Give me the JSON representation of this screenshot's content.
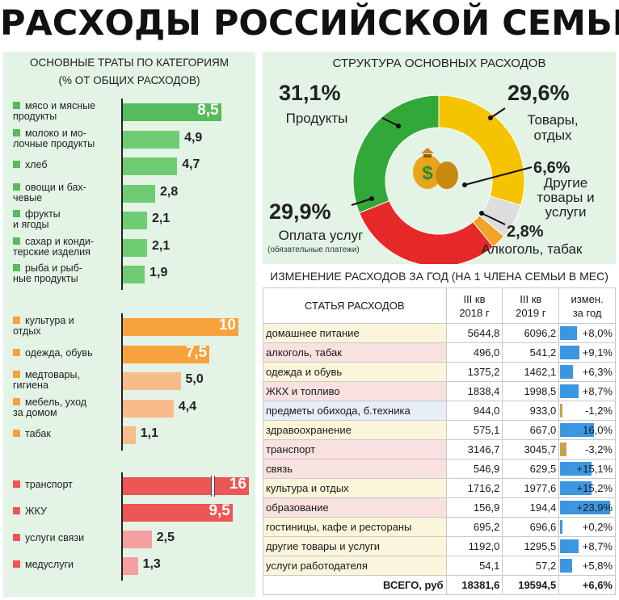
{
  "title": "РАСХОДЫ РОССИЙСКОЙ СЕМЬИ",
  "left_panel": {
    "heading_line1": "ОСНОВНЫЕ ТРАТЫ ПО КАТЕГОРИЯМ",
    "heading_line2": "(% ОТ ОБЩИХ РАСХОДОВ)"
  },
  "donut_title": "СТРУКТУРА ОСНОВНЫХ РАСХОДОВ",
  "donut_labels": {
    "products_pct": "31,1%",
    "products_name": "Продукты",
    "goods_pct": "29,6%",
    "goods_name_1": "Товары,",
    "goods_name_2": "отдых",
    "services_pct": "29,9%",
    "services_name": "Оплата услуг",
    "services_note": "(обязательные платежи)",
    "other_pct": "6,6%",
    "other_name_1": "Другие",
    "other_name_2": "товары и",
    "other_name_3": "услуги",
    "alcohol_pct": "2,8%",
    "alcohol_name": "Алкоголь, табак"
  },
  "table_title": "ИЗМЕНЕНИЕ РАСХОДОВ ЗА ГОД (НА 1 ЧЛЕНА СЕМЬИ В МЕС)",
  "table_headers": {
    "item": "СТАТЬЯ РАСХОДОВ",
    "q2018_1": "III кв",
    "q2018_2": "2018 г",
    "q2019_1": "III кв",
    "q2019_2": "2019 г",
    "chg_1": "измен.",
    "chg_2": "за год"
  },
  "colors": {
    "green": "#6fcc72",
    "green_first": "#56bb5c",
    "orange_strong": "#f7a23c",
    "orange_light": "#f8bb8a",
    "red_strong": "#ee5555",
    "red_light": "#f4a0a0",
    "donut_green": "#33a83a",
    "donut_yellow": "#f5c300",
    "donut_red": "#e62828",
    "donut_grey": "#dddddd",
    "donut_orange": "#f2a32a",
    "row_yellow": "#fbf5dc",
    "row_pink": "#f8e1e0",
    "row_blue": "#e6eef7",
    "chg_pos": "#3b97e2",
    "chg_neg": "#c8a24a"
  },
  "chart_data": [
    {
      "type": "bar",
      "title": "ОСНОВНЫЕ ТРАТЫ ПО КАТЕГОРИЯМ (% ОТ ОБЩИХ РАСХОДОВ)",
      "groups": [
        {
          "name": "Продукты",
          "categories": [
            "мясо и мясные продукты",
            "молоко и молочные продукты",
            "хлеб",
            "овощи и бахчевые",
            "фрукты и ягоды",
            "сахар и кондитерские изделия",
            "рыба и рыбные продукты"
          ],
          "display_labels": [
            [
              "мясо и мясные",
              "продукты"
            ],
            [
              "молоко и мо-",
              "лочные продукты"
            ],
            [
              "хлеб"
            ],
            [
              "овощи и бах-",
              "чевые"
            ],
            [
              "фрукты",
              "и ягоды"
            ],
            [
              "сахар и конди-",
              "терские изделия"
            ],
            [
              "рыба и рыб-",
              "ные продукты"
            ]
          ],
          "values": [
            8.5,
            4.9,
            4.7,
            2.8,
            2.1,
            2.1,
            1.9
          ],
          "value_labels": [
            "8,5",
            "4,9",
            "4,7",
            "2,8",
            "2,1",
            "2,1",
            "1,9"
          ]
        },
        {
          "name": "Товары, отдых",
          "categories": [
            "культура и отдых",
            "одежда, обувь",
            "медтовары, гигиена",
            "мебель, уход за домом",
            "табак"
          ],
          "display_labels": [
            [
              "культура и",
              "отдых"
            ],
            [
              "одежда, обувь"
            ],
            [
              "медтовары,",
              "гигиена"
            ],
            [
              "мебель, уход",
              "за домом"
            ],
            [
              "табак"
            ]
          ],
          "values": [
            10,
            7.5,
            5.0,
            4.4,
            1.1
          ],
          "value_labels": [
            "10",
            "7,5",
            "5,0",
            "4,4",
            "1,1"
          ]
        },
        {
          "name": "Услуги",
          "categories": [
            "транспорт",
            "ЖКУ",
            "услуги связи",
            "медуслуги"
          ],
          "display_labels": [
            [
              "транспорт"
            ],
            [
              "ЖКУ"
            ],
            [
              "услуги связи"
            ],
            [
              "медуслуги"
            ]
          ],
          "values": [
            16,
            9.5,
            2.5,
            1.3
          ],
          "value_labels": [
            "16",
            "9,5",
            "2,5",
            "1,3"
          ]
        }
      ]
    },
    {
      "type": "pie",
      "title": "СТРУКТУРА ОСНОВНЫХ РАСХОДОВ",
      "categories": [
        "Продукты",
        "Товары, отдых",
        "Другие товары и услуги",
        "Алкоголь, табак",
        "Оплата услуг"
      ],
      "values": [
        31.1,
        29.6,
        6.6,
        2.8,
        29.9
      ]
    },
    {
      "type": "table",
      "title": "ИЗМЕНЕНИЕ РАСХОДОВ ЗА ГОД (НА 1 ЧЛЕНА СЕМЬИ В МЕС)",
      "columns": [
        "СТАТЬЯ РАСХОДОВ",
        "III кв 2018 г",
        "III кв 2019 г",
        "измен. за год"
      ],
      "rows": [
        {
          "name": "домашнее питание",
          "v2018": "5644,8",
          "v2019": "6096,2",
          "chg": "+8,0%",
          "chg_value": 8.0
        },
        {
          "name": "алкоголь, табак",
          "v2018": "496,0",
          "v2019": "541,2",
          "chg": "+9,1%",
          "chg_value": 9.1
        },
        {
          "name": "одежда и обувь",
          "v2018": "1375,2",
          "v2019": "1462,1",
          "chg": "+6,3%",
          "chg_value": 6.3
        },
        {
          "name": "ЖКХ и топливо",
          "v2018": "1838,4",
          "v2019": "1998,5",
          "chg": "+8,7%",
          "chg_value": 8.7
        },
        {
          "name": "предметы обихода, б.техника",
          "v2018": "944,0",
          "v2019": "933,0",
          "chg": "-1,2%",
          "chg_value": -1.2
        },
        {
          "name": "здравоохранение",
          "v2018": "575,1",
          "v2019": "667,0",
          "chg": "16,0%",
          "chg_value": 16.0
        },
        {
          "name": "транспорт",
          "v2018": "3146,7",
          "v2019": "3045,7",
          "chg": "-3,2%",
          "chg_value": -3.2
        },
        {
          "name": "связь",
          "v2018": "546,9",
          "v2019": "629,5",
          "chg": "+15,1%",
          "chg_value": 15.1
        },
        {
          "name": "культура и отдых",
          "v2018": "1716,2",
          "v2019": "1977,6",
          "chg": "+15,2%",
          "chg_value": 15.2
        },
        {
          "name": "образование",
          "v2018": "156,9",
          "v2019": "194,4",
          "chg": "+23,9%",
          "chg_value": 23.9
        },
        {
          "name": "гостиницы, кафе и рестораны",
          "v2018": "695,2",
          "v2019": "696,6",
          "chg": "+0,2%",
          "chg_value": 0.2
        },
        {
          "name": "другие товары и услуги",
          "v2018": "1192,0",
          "v2019": "1295,5",
          "chg": "+8,7%",
          "chg_value": 8.7
        },
        {
          "name": "услуги работодателя",
          "v2018": "54,1",
          "v2019": "57,2",
          "chg": "+5,8%",
          "chg_value": 5.8
        }
      ],
      "total": {
        "name": "ВСЕГО, руб",
        "v2018": "18381,6",
        "v2019": "19594,5",
        "chg": "+6,6%"
      }
    }
  ]
}
